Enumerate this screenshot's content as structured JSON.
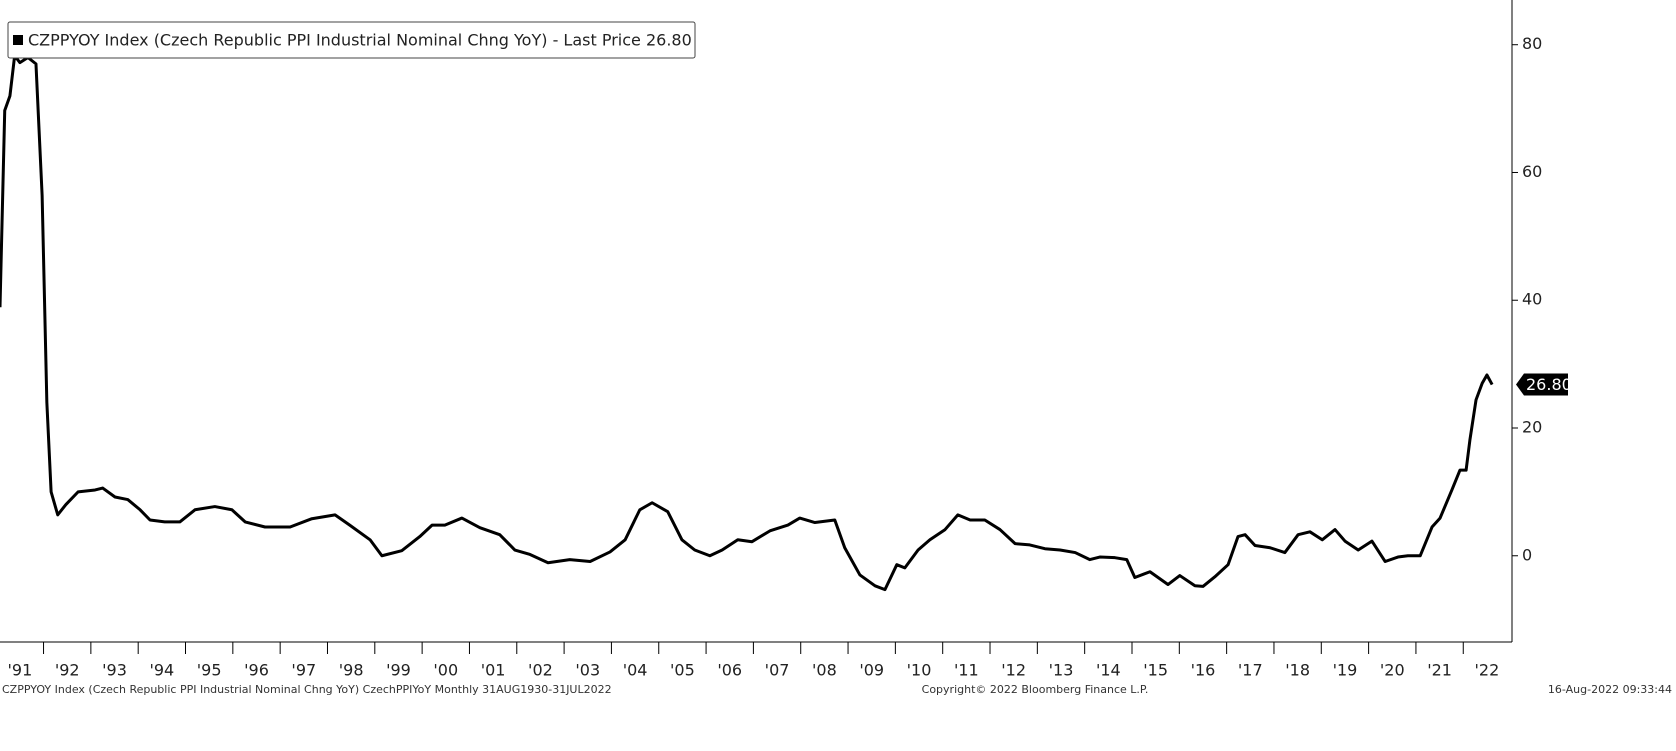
{
  "chart_data": {
    "type": "line",
    "series": [
      {
        "name": "CZPPYOY Index (Czech Republic PPI Industrial Nominal Chng YoY) - Last Price 26.80",
        "color": "#000000",
        "values": [
          38.9,
          69.7,
          72,
          78.3,
          77.2,
          78,
          77,
          56.4,
          24,
          10,
          6.4,
          8,
          10,
          10.3,
          10.6,
          9.2,
          8.8,
          7.2,
          5.6,
          5.3,
          5.3,
          7.2,
          7.7,
          7.2,
          5.3,
          4.5,
          4.5,
          5.8,
          6.4,
          4.8,
          2.5,
          0,
          0.8,
          3,
          4.8,
          4.8,
          5.9,
          4.4,
          3.3,
          0.9,
          0.2,
          -1.1,
          -0.6,
          -0.9,
          0.6,
          2.5,
          7.2,
          8.3,
          6.9,
          2.5,
          0.9,
          0,
          0.9,
          2.5,
          2.2,
          3.9,
          4.8,
          5.9,
          5.2,
          5.6,
          1.25,
          -3,
          -4.7,
          -5.3,
          -1.4,
          -1.9,
          0.9,
          2.5,
          4.1,
          6.4,
          5.6,
          5.6,
          4.1,
          1.9,
          1.7,
          1.1,
          0.9,
          0.5,
          -0.6,
          -0.2,
          -0.3,
          -0.6,
          -3.4,
          -2.5,
          -4.5,
          -3.1,
          -4.7,
          -4.8,
          -3.3,
          -1.4,
          3,
          3.3,
          1.6,
          1.25,
          0.5,
          3.3,
          3.75,
          2.5,
          4.1,
          2.3,
          0.9,
          2.3,
          -0.9,
          -0.2,
          0,
          0,
          4.5,
          5.9,
          10.3,
          13.4,
          13.4,
          18.1,
          24.4,
          27,
          28.3,
          26.8
        ]
      }
    ],
    "x": [
      1991.08,
      1991.18,
      1991.29,
      1991.39,
      1991.5,
      1991.67,
      1991.84,
      1991.97,
      1992.07,
      1992.16,
      1992.3,
      1992.47,
      1992.73,
      1993.09,
      1993.25,
      1993.51,
      1993.78,
      1994.04,
      1994.25,
      1994.56,
      1994.88,
      1995.2,
      1995.62,
      1995.98,
      1996.26,
      1996.68,
      1997.21,
      1997.67,
      1998.16,
      1998.47,
      1998.9,
      1999.15,
      1999.57,
      1999.95,
      2000.21,
      2000.48,
      2000.84,
      2001.22,
      2001.64,
      2001.96,
      2002.28,
      2002.66,
      2003.12,
      2003.55,
      2003.97,
      2004.29,
      2004.6,
      2004.86,
      2005.19,
      2005.49,
      2005.76,
      2006.08,
      2006.34,
      2006.67,
      2006.97,
      2007.35,
      2007.73,
      2007.98,
      2008.3,
      2008.72,
      2008.93,
      2009.25,
      2009.57,
      2009.78,
      2010.03,
      2010.2,
      2010.48,
      2010.73,
      2011.05,
      2011.32,
      2011.58,
      2011.89,
      2012.21,
      2012.53,
      2012.84,
      2013.16,
      2013.48,
      2013.8,
      2014.11,
      2014.32,
      2014.64,
      2014.89,
      2015.06,
      2015.38,
      2015.76,
      2016.01,
      2016.33,
      2016.5,
      2016.75,
      2017.03,
      2017.24,
      2017.39,
      2017.6,
      2017.92,
      2018.23,
      2018.51,
      2018.76,
      2019.02,
      2019.29,
      2019.5,
      2019.78,
      2020.07,
      2020.35,
      2020.62,
      2020.83,
      2021.09,
      2021.34,
      2021.51,
      2021.76,
      2021.93,
      2022.06,
      2022.14,
      2022.27,
      2022.4,
      2022.5,
      2022.61
    ],
    "last_value_label": "26.80",
    "xlim": [
      1991.08,
      2023.03
    ],
    "ylim": [
      -13.5,
      87
    ],
    "yticks": [
      0,
      20,
      40,
      60,
      80
    ],
    "xticks": [
      {
        "value": 1991,
        "label": "'91"
      },
      {
        "value": 1992,
        "label": "'92"
      },
      {
        "value": 1993,
        "label": "'93"
      },
      {
        "value": 1994,
        "label": "'94"
      },
      {
        "value": 1995,
        "label": "'95"
      },
      {
        "value": 1996,
        "label": "'96"
      },
      {
        "value": 1997,
        "label": "'97"
      },
      {
        "value": 1998,
        "label": "'98"
      },
      {
        "value": 1999,
        "label": "'99"
      },
      {
        "value": 2000,
        "label": "'00"
      },
      {
        "value": 2001,
        "label": "'01"
      },
      {
        "value": 2002,
        "label": "'02"
      },
      {
        "value": 2003,
        "label": "'03"
      },
      {
        "value": 2004,
        "label": "'04"
      },
      {
        "value": 2005,
        "label": "'05"
      },
      {
        "value": 2006,
        "label": "'06"
      },
      {
        "value": 2007,
        "label": "'07"
      },
      {
        "value": 2008,
        "label": "'08"
      },
      {
        "value": 2009,
        "label": "'09"
      },
      {
        "value": 2010,
        "label": "'10"
      },
      {
        "value": 2011,
        "label": "'11"
      },
      {
        "value": 2012,
        "label": "'12"
      },
      {
        "value": 2013,
        "label": "'13"
      },
      {
        "value": 2014,
        "label": "'14"
      },
      {
        "value": 2015,
        "label": "'15"
      },
      {
        "value": 2016,
        "label": "'16"
      },
      {
        "value": 2017,
        "label": "'17"
      },
      {
        "value": 2018,
        "label": "'18"
      },
      {
        "value": 2019,
        "label": "'19"
      },
      {
        "value": 2020,
        "label": "'20"
      },
      {
        "value": 2021,
        "label": "'21"
      },
      {
        "value": 2022,
        "label": "'22"
      }
    ],
    "footer_left": "CZPPYOY Index (Czech Republic PPI Industrial Nominal Chng YoY) CzechPPIYoY  Monthly 31AUG1930-31JUL2022",
    "footer_center": "Copyright© 2022 Bloomberg Finance L.P.",
    "footer_right": "16-Aug-2022 09:33:44",
    "grid": false
  }
}
